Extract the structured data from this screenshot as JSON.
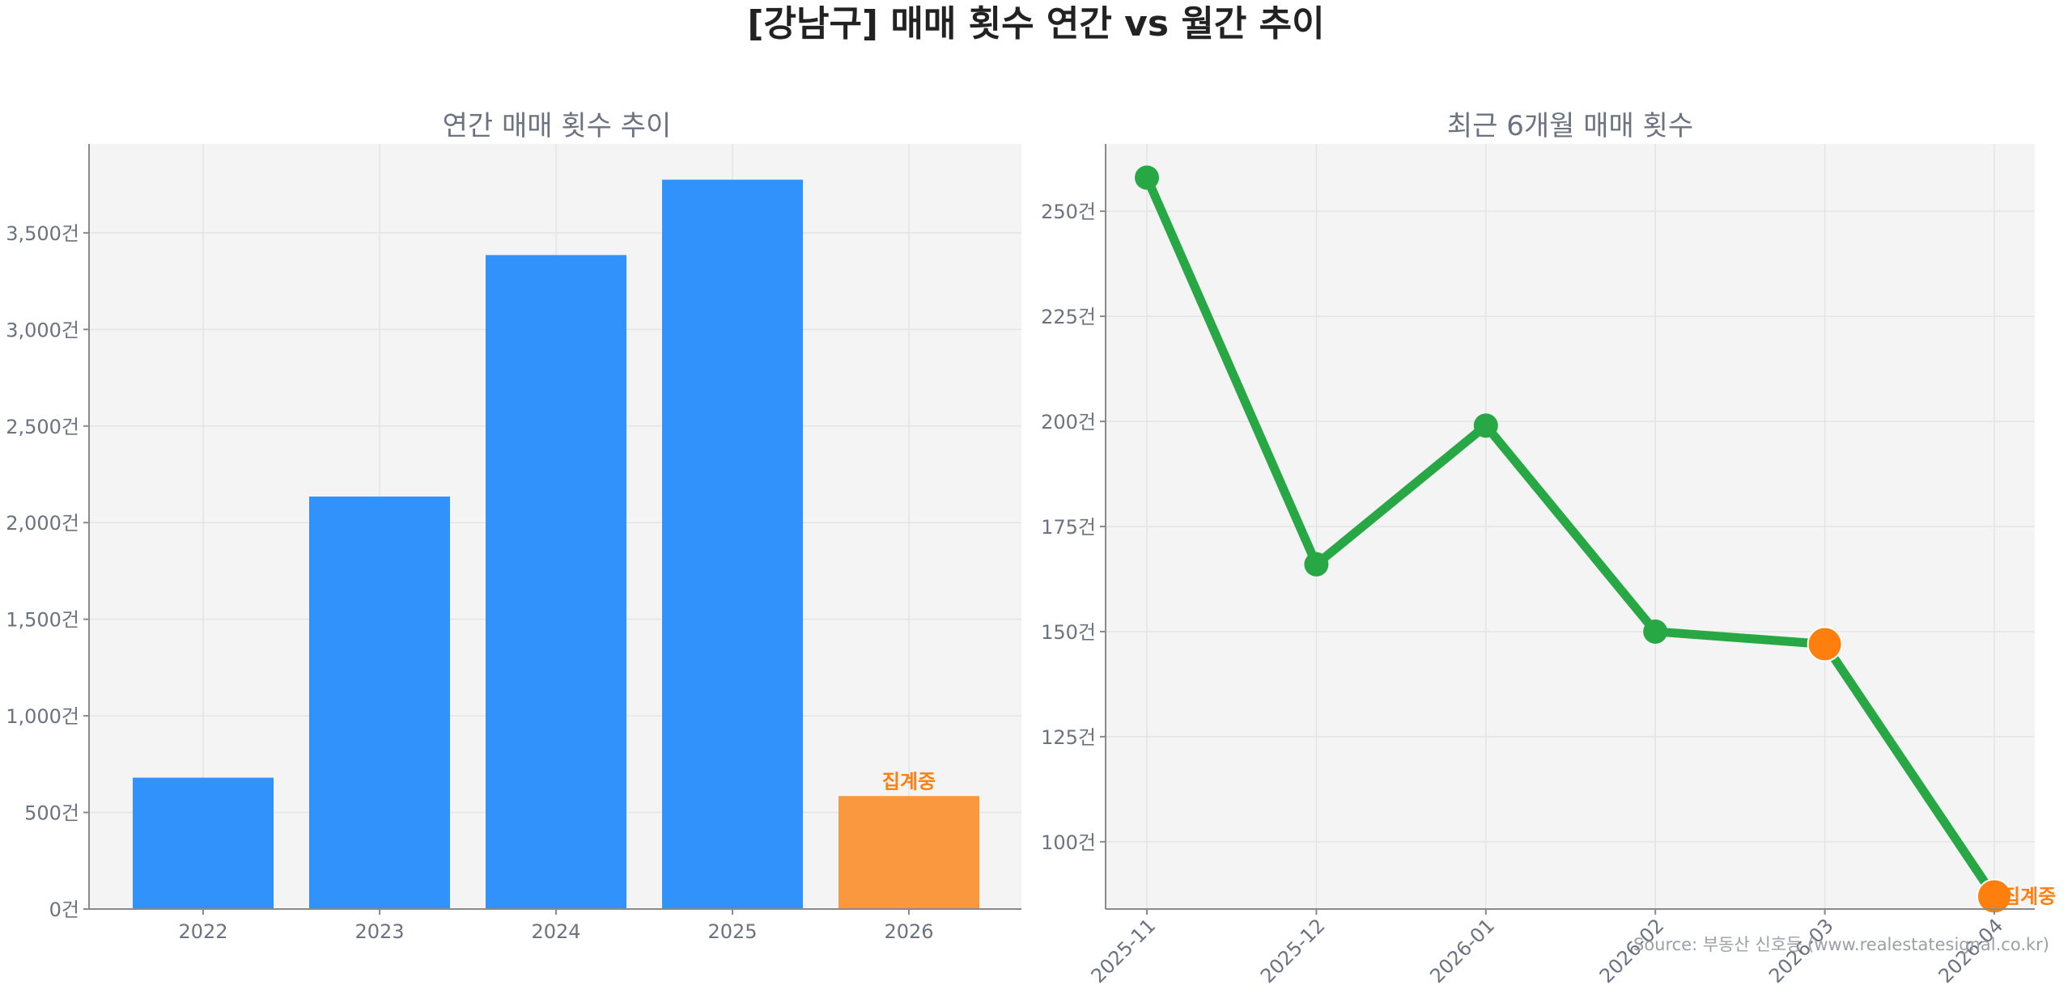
{
  "title": "[강남구] 매매 횟수 연간 vs 월간 추이",
  "source": "Source: 부동산 신호등 (www.realestatesignal.co.kr)",
  "colors": {
    "annual_bar": "#3292fb",
    "annual_bar_pending": "#fa983f",
    "monthly_line": "#28a745",
    "pending_marker": "#ff7f0e",
    "pending_label": "#ff7f0e",
    "plot_background": "#f4f4f4",
    "grid": "#e4e4e4"
  },
  "chart_data": [
    {
      "type": "bar",
      "title": "연간 매매 횟수 추이",
      "categories": [
        "2022",
        "2023",
        "2024",
        "2025",
        "2026"
      ],
      "values": [
        680,
        2135,
        3385,
        3775,
        585
      ],
      "pending_index": 4,
      "pending_label": "집계중",
      "ylim": [
        0,
        3960
      ],
      "yticks": [
        0,
        500,
        1000,
        1500,
        2000,
        2500,
        3000,
        3500
      ],
      "ytick_labels": [
        "0건",
        "500건",
        "1,000건",
        "1,500건",
        "2,000건",
        "2,500건",
        "3,000건",
        "3,500건"
      ],
      "grid": true
    },
    {
      "type": "line",
      "title": "최근 6개월 매매 횟수",
      "categories": [
        "2025-11",
        "2025-12",
        "2026-01",
        "2026-02",
        "2026-03",
        "2026-04"
      ],
      "values": [
        258,
        166,
        199,
        150,
        147,
        87
      ],
      "pending_indices": [
        4,
        5
      ],
      "pending_label": "집계중",
      "ylim": [
        84,
        266
      ],
      "yticks": [
        100,
        125,
        150,
        175,
        200,
        225,
        250
      ],
      "ytick_labels": [
        "100건",
        "125건",
        "150건",
        "175건",
        "200건",
        "225건",
        "250건"
      ],
      "grid": true
    }
  ]
}
